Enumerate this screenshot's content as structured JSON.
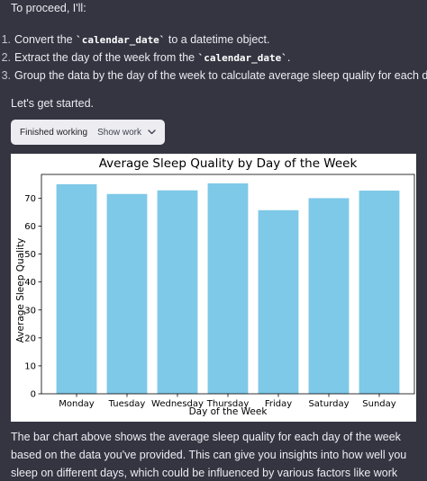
{
  "message": {
    "intro": "To proceed, I'll:",
    "steps": [
      {
        "num": "1.",
        "before": "Convert the ",
        "code": "`calendar_date`",
        "after": " to a datetime object."
      },
      {
        "num": "2.",
        "before": "Extract the day of the week from the ",
        "code": "`calendar_date`",
        "after": "."
      },
      {
        "num": "3.",
        "before": "Group the data by the day of the week to calculate average sleep quality for each day.",
        "code": "",
        "after": ""
      }
    ],
    "lets_get_started": "Let's get started.",
    "status": {
      "label": "Finished working",
      "show_work": "Show work",
      "chevron_icon": "chevron-down-icon"
    },
    "outro": "The bar chart above shows the average sleep quality for each day of the week based on the data you've provided. This can give you insights into how well you sleep on different days, which could be influenced by various factors like work stress, physical activity, etc."
  },
  "chart_data": {
    "type": "bar",
    "title": "Average Sleep Quality by Day of the Week",
    "xlabel": "Day of the Week",
    "ylabel": "Average Sleep Quality",
    "categories": [
      "Monday",
      "Tuesday",
      "Wednesday",
      "Thursday",
      "Friday",
      "Saturday",
      "Sunday"
    ],
    "values": [
      75.0,
      71.5,
      72.8,
      75.3,
      65.7,
      70.0,
      72.7
    ],
    "yticks": [
      0,
      10,
      20,
      30,
      40,
      50,
      60,
      70
    ],
    "ylim": [
      0,
      78.5
    ],
    "bar_color": "#7ec8e8",
    "grid": false,
    "legend": "none"
  }
}
